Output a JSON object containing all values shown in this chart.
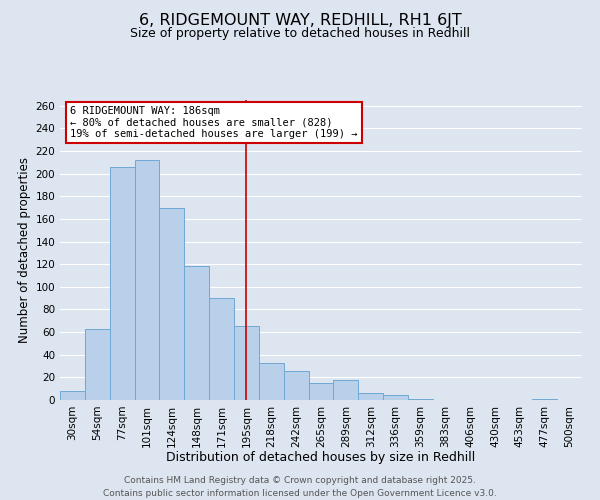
{
  "title": "6, RIDGEMOUNT WAY, REDHILL, RH1 6JT",
  "subtitle": "Size of property relative to detached houses in Redhill",
  "xlabel": "Distribution of detached houses by size in Redhill",
  "ylabel": "Number of detached properties",
  "bar_labels": [
    "30sqm",
    "54sqm",
    "77sqm",
    "101sqm",
    "124sqm",
    "148sqm",
    "171sqm",
    "195sqm",
    "218sqm",
    "242sqm",
    "265sqm",
    "289sqm",
    "312sqm",
    "336sqm",
    "359sqm",
    "383sqm",
    "406sqm",
    "430sqm",
    "453sqm",
    "477sqm",
    "500sqm"
  ],
  "bar_values": [
    8,
    63,
    206,
    212,
    170,
    118,
    90,
    65,
    33,
    26,
    15,
    18,
    6,
    4,
    1,
    0,
    0,
    0,
    0,
    1,
    0
  ],
  "bar_color": "#b8d0ea",
  "bar_edge_color": "#6fa8d4",
  "background_color": "#dde5f0",
  "grid_color": "#ffffff",
  "vline_x_index": 7,
  "vline_color": "#cc0000",
  "annotation_line1": "6 RIDGEMOUNT WAY: 186sqm",
  "annotation_line2": "← 80% of detached houses are smaller (828)",
  "annotation_line3": "19% of semi-detached houses are larger (199) →",
  "annotation_box_color": "#ffffff",
  "annotation_box_edge_color": "#cc0000",
  "ylim": [
    0,
    265
  ],
  "yticks": [
    0,
    20,
    40,
    60,
    80,
    100,
    120,
    140,
    160,
    180,
    200,
    220,
    240,
    260
  ],
  "footer_line1": "Contains HM Land Registry data © Crown copyright and database right 2025.",
  "footer_line2": "Contains public sector information licensed under the Open Government Licence v3.0.",
  "title_fontsize": 11.5,
  "subtitle_fontsize": 9,
  "xlabel_fontsize": 9,
  "ylabel_fontsize": 8.5,
  "tick_fontsize": 7.5,
  "annotation_fontsize": 7.5,
  "footer_fontsize": 6.5
}
